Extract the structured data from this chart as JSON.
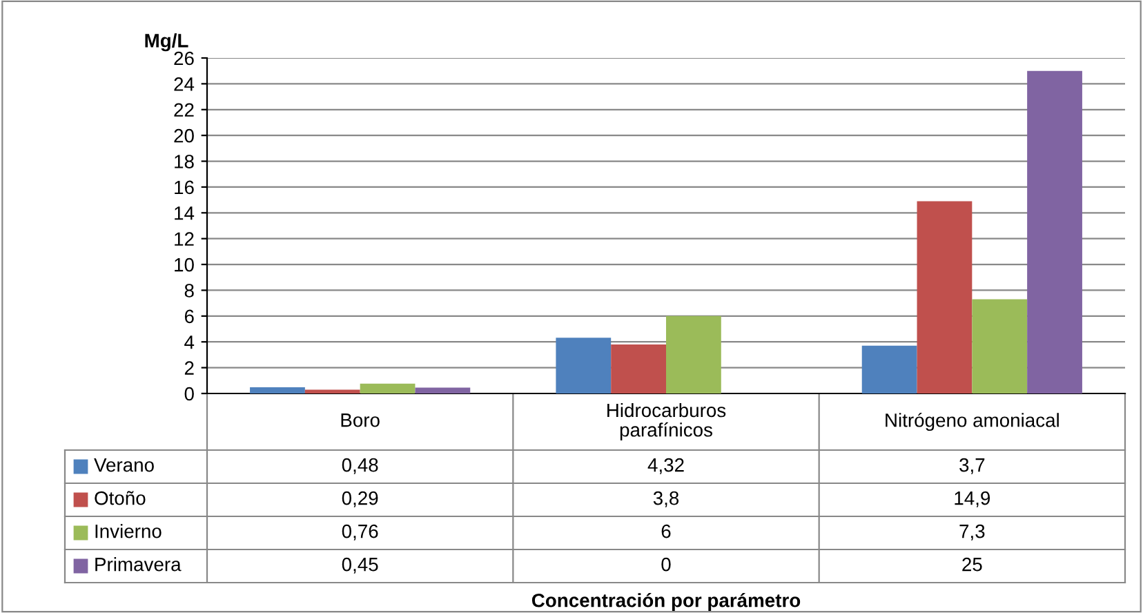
{
  "chart_data": {
    "type": "bar",
    "ylabel": "Mg/L",
    "annotations": [
      "Concentración por parámetro"
    ],
    "legend": "bottom left",
    "categories": [
      "Boro",
      "Hidrocarburos\nparafínicos",
      "Nitrógeno amoniacal"
    ],
    "series": [
      {
        "name": "Verano",
        "color": "#4f81bd",
        "values": [
          0.48,
          4.32,
          3.7
        ],
        "value_labels": [
          "0,48",
          "4,32",
          "3,7"
        ]
      },
      {
        "name": "Otoño",
        "color": "#c0504d",
        "values": [
          0.29,
          3.8,
          14.9
        ],
        "value_labels": [
          "0,29",
          "3,8",
          "14,9"
        ]
      },
      {
        "name": "Invierno",
        "color": "#9bbb59",
        "values": [
          0.76,
          6,
          7.3
        ],
        "value_labels": [
          "0,76",
          "6",
          "7,3"
        ]
      },
      {
        "name": "Primavera",
        "color": "#8064a2",
        "values": [
          0.45,
          0,
          25
        ],
        "value_labels": [
          "0,45",
          "0",
          "25"
        ]
      }
    ],
    "ylim": [
      0,
      26
    ],
    "yticks": [
      0,
      2,
      4,
      6,
      8,
      10,
      12,
      14,
      16,
      18,
      20,
      22,
      24,
      26
    ],
    "grid": "y"
  }
}
